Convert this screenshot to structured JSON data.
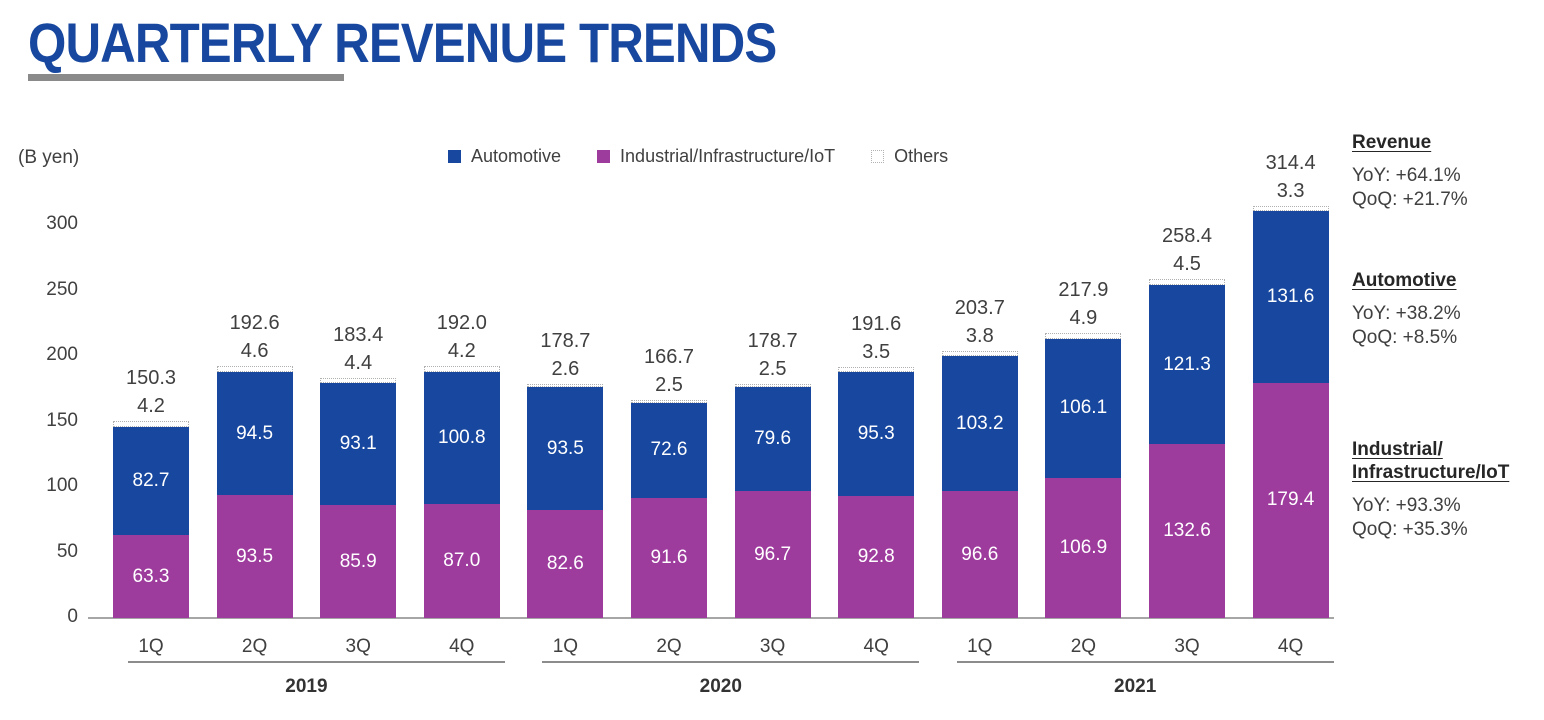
{
  "page": {
    "title": "QUARTERLY REVENUE TRENDS"
  },
  "chart_data": {
    "type": "bar",
    "stacked": true,
    "title": "QUARTERLY REVENUE TRENDS",
    "ylabel": "(B yen)",
    "ylim": [
      0,
      300
    ],
    "yticks": [
      0,
      50,
      100,
      150,
      200,
      250,
      300
    ],
    "grid": false,
    "legend_position": "top-center",
    "years": [
      "2019",
      "2020",
      "2021"
    ],
    "quarters": [
      "1Q",
      "2Q",
      "3Q",
      "4Q"
    ],
    "series": [
      {
        "name": "Industrial/Infrastructure/IoT",
        "color": "#9e3c9e",
        "values": [
          63.3,
          93.5,
          85.9,
          87.0,
          82.6,
          91.6,
          96.7,
          92.8,
          96.6,
          106.9,
          132.6,
          179.4
        ]
      },
      {
        "name": "Automotive",
        "color": "#17479e",
        "values": [
          82.7,
          94.5,
          93.1,
          100.8,
          93.5,
          72.6,
          79.6,
          95.3,
          103.2,
          106.1,
          121.3,
          131.6
        ]
      },
      {
        "name": "Others",
        "color": "#ffffff",
        "values": [
          4.2,
          4.6,
          4.4,
          4.2,
          2.6,
          2.5,
          2.5,
          3.5,
          3.8,
          4.9,
          4.5,
          3.3
        ]
      }
    ],
    "totals": [
      150.3,
      192.6,
      183.4,
      192.0,
      178.7,
      166.7,
      178.7,
      191.6,
      203.7,
      217.9,
      258.4,
      314.4
    ],
    "legend": [
      {
        "label": "Automotive",
        "color": "#17479e"
      },
      {
        "label": "Industrial/Infrastructure/IoT",
        "color": "#9e3c9e"
      },
      {
        "label": "Others",
        "color": "#ffffff"
      }
    ]
  },
  "annotations": [
    {
      "heading": [
        "Revenue"
      ],
      "yoy": "YoY: +64.1%",
      "qoq": "QoQ: +21.7%"
    },
    {
      "heading": [
        "Automotive"
      ],
      "yoy": "YoY: +38.2%",
      "qoq": "QoQ: +8.5%"
    },
    {
      "heading": [
        "Industrial/",
        "Infrastructure/IoT"
      ],
      "yoy": "YoY: +93.3%",
      "qoq": "QoQ: +35.3%"
    }
  ]
}
